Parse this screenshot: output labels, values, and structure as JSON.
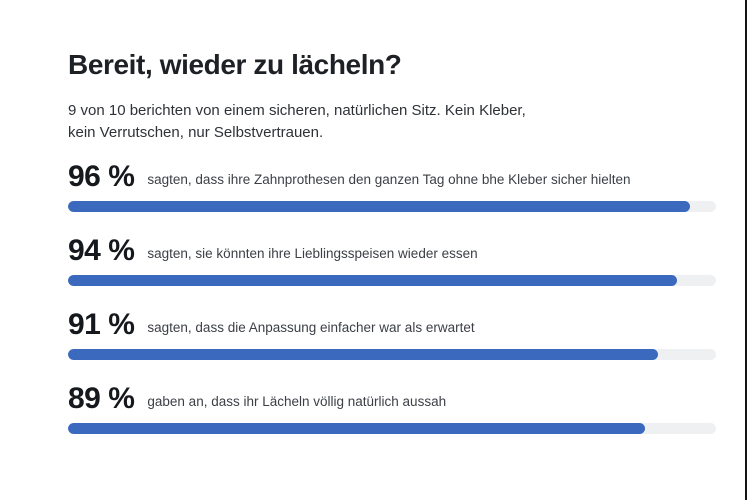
{
  "page": {
    "background": "#ffffff",
    "right_border_color": "#141414"
  },
  "header": {
    "title": "Bereit, wieder zu lächeln?",
    "subtitle_line1": "9 von 10 berichten von einem sicheren, natürlichen Sitz. Kein Kleber,",
    "subtitle_line2": "kein Verrutschen, nur Selbstvertrauen."
  },
  "stats": [
    {
      "percent_label": "96 %",
      "description": "sagten, dass ihre Zahnprothesen den ganzen Tag ohne bhe Kleber sicher hielten"
    },
    {
      "percent_label": "94 %",
      "description": "sagten, sie könnten ihre Lieblingsspeisen wieder essen"
    },
    {
      "percent_label": "91 %",
      "description": "sagten, dass die Anpassung einfacher war als erwartet"
    },
    {
      "percent_label": "89 %",
      "description": "gaben an, dass ihr Lächeln völlig natürlich aussah"
    }
  ],
  "chart_data": {
    "type": "bar",
    "orientation": "horizontal",
    "title": "Bereit, wieder zu lächeln?",
    "subtitle": "9 von 10 berichten von einem sicheren, natürlichen Sitz. Kein Kleber, kein Verrutschen, nur Selbstvertrauen.",
    "categories": [
      "sagten, dass ihre Zahnprothesen den ganzen Tag ohne bhe Kleber sicher hielten",
      "sagten, sie könnten ihre Lieblingsspeisen wieder essen",
      "sagten, dass die Anpassung einfacher war als erwartet",
      "gaben an, dass ihr Lächeln völlig natürlich aussah"
    ],
    "values": [
      96,
      94,
      91,
      89
    ],
    "unit": "%",
    "xlim": [
      0,
      100
    ],
    "grid": false,
    "legend": false,
    "bar_color": "#3b69be",
    "track_color": "#eef0f1"
  }
}
